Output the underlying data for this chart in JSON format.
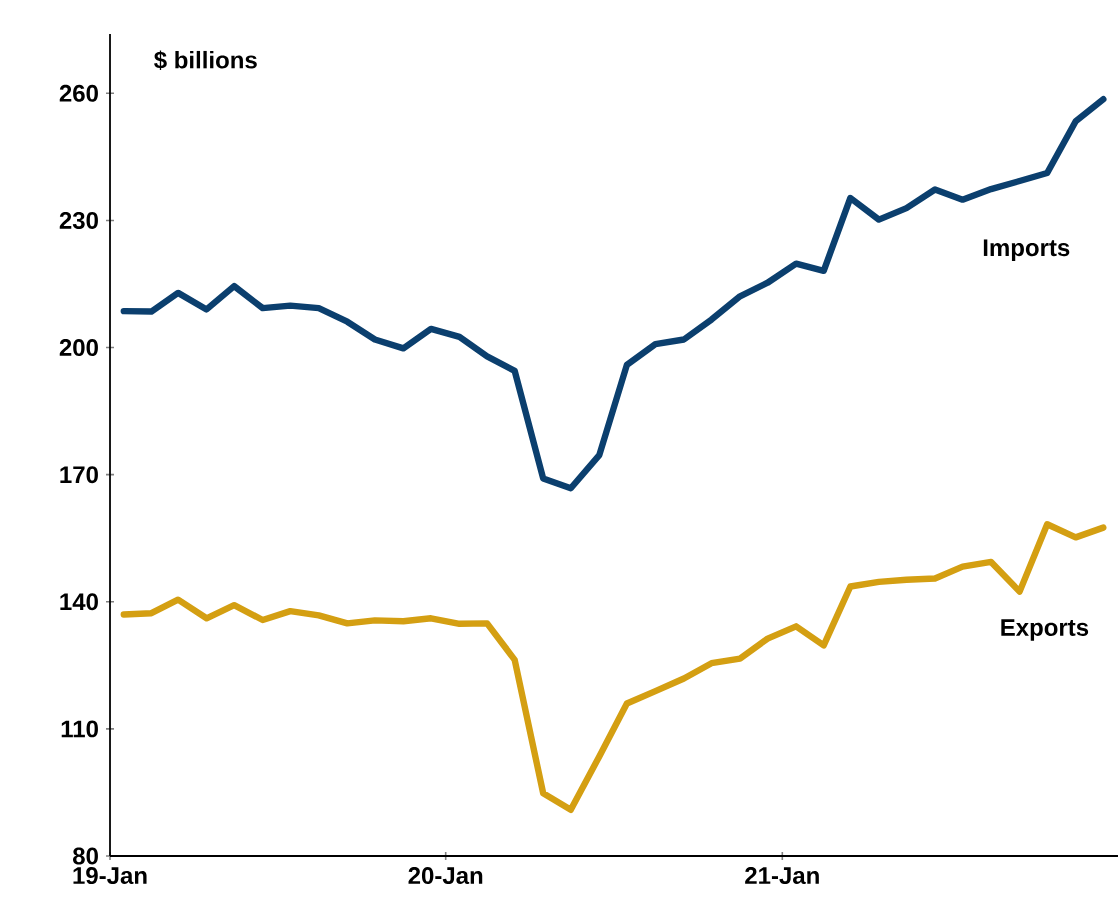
{
  "chart_data": {
    "type": "line",
    "ylabel": "$ billions",
    "x": [
      "2019-01-16",
      "2019-02-15",
      "2019-03-16",
      "2019-04-16",
      "2019-05-16",
      "2019-06-16",
      "2019-07-16",
      "2019-08-16",
      "2019-09-16",
      "2019-10-16",
      "2019-11-16",
      "2019-12-16",
      "2020-01-16",
      "2020-02-15",
      "2020-03-16",
      "2020-04-16",
      "2020-05-16",
      "2020-06-16",
      "2020-07-16",
      "2020-08-16",
      "2020-09-16",
      "2020-10-16",
      "2020-11-16",
      "2020-12-16",
      "2021-01-16",
      "2021-02-15",
      "2021-03-16",
      "2021-04-16",
      "2021-05-16",
      "2021-06-16",
      "2021-07-16",
      "2021-08-16",
      "2021-09-16",
      "2021-10-16",
      "2021-11-16",
      "2021-12-16"
    ],
    "series": [
      {
        "name": "Imports",
        "color": "#0b3f6e",
        "values": [
          208.6,
          208.5,
          212.9,
          209.0,
          214.5,
          209.3,
          209.9,
          209.3,
          206.1,
          201.9,
          199.8,
          204.4,
          202.5,
          197.9,
          194.5,
          169.1,
          166.8,
          174.6,
          195.9,
          200.8,
          201.9,
          206.6,
          212.1,
          215.3,
          219.8,
          218.1,
          235.3,
          230.2,
          232.9,
          237.3,
          234.9,
          237.4,
          239.3,
          241.2,
          253.4,
          258.6
        ]
      },
      {
        "name": "Exports",
        "color": "#d49f12",
        "values": [
          137.0,
          137.3,
          140.5,
          136.1,
          139.2,
          135.7,
          137.8,
          136.8,
          134.9,
          135.6,
          135.4,
          136.1,
          134.8,
          134.9,
          126.3,
          94.8,
          90.9,
          103.5,
          116.0,
          118.9,
          121.9,
          125.5,
          126.6,
          131.3,
          134.2,
          129.7,
          143.6,
          144.7,
          145.2,
          145.5,
          148.3,
          149.4,
          142.4,
          158.3,
          155.2,
          157.5
        ]
      }
    ],
    "xlim": [
      "2019-01-01",
      "2022-01-01"
    ],
    "xticks": [
      {
        "value": "2019-01-01",
        "label": "19-Jan"
      },
      {
        "value": "2020-01-01",
        "label": "20-Jan"
      },
      {
        "value": "2021-01-01",
        "label": "21-Jan"
      }
    ],
    "ylim": [
      80,
      274
    ],
    "yticks": [
      80,
      110,
      140,
      170,
      200,
      230,
      260
    ],
    "grid": false,
    "legend": false,
    "line_style": "solid"
  }
}
